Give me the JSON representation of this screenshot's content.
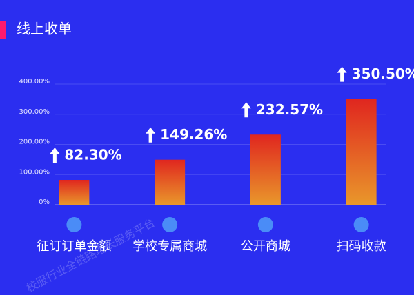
{
  "chart_data": {
    "type": "bar",
    "title": "线上收单",
    "categories": [
      "征订订单金额",
      "学校专属商城",
      "公开商城",
      "扫码收款"
    ],
    "values": [
      82.3,
      149.26,
      232.57,
      350.5
    ],
    "value_labels": [
      "82.30%",
      "149.26%",
      "232.57%",
      "350.50%"
    ],
    "ylim": [
      0,
      400
    ],
    "yticks": [
      {
        "value": 0,
        "label": "0%"
      },
      {
        "value": 100,
        "label": "100.00%"
      },
      {
        "value": 200,
        "label": "200.00%"
      },
      {
        "value": 300,
        "label": "300.00%"
      },
      {
        "value": 400,
        "label": "400.00%"
      }
    ],
    "grid": true,
    "watermark": "校服行业全链路增长服务平台"
  }
}
